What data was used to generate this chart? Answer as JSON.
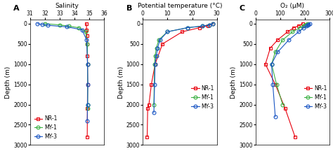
{
  "panels": {
    "A": {
      "title": "Salinity",
      "label": "A",
      "xlim": [
        31,
        36
      ],
      "xticks": [
        31,
        32,
        33,
        34,
        35,
        36
      ],
      "series": {
        "NR-1": {
          "x": [
            34.8,
            34.82,
            34.84,
            34.86,
            34.87,
            34.88,
            34.88,
            34.87,
            34.86
          ],
          "y": [
            0,
            150,
            300,
            500,
            800,
            1000,
            1500,
            2100,
            2800
          ]
        },
        "MY-1": {
          "x": [
            32.0,
            33.0,
            33.6,
            34.3,
            34.75,
            34.87,
            34.88,
            34.89,
            34.9
          ],
          "y": [
            0,
            30,
            60,
            100,
            200,
            500,
            1000,
            2000,
            2100
          ]
        },
        "MY-3": {
          "x": [
            31.5,
            31.8,
            32.2,
            33.5,
            34.5,
            34.82,
            34.88,
            34.9,
            34.88,
            34.86
          ],
          "y": [
            0,
            20,
            40,
            80,
            150,
            400,
            1000,
            1500,
            2000,
            2400
          ]
        }
      },
      "legend_loc": "lower left",
      "show_ylabel": true
    },
    "B": {
      "title": "Potential temperature (°C)",
      "label": "B",
      "xlim": [
        0,
        30
      ],
      "xticks": [
        0,
        10,
        20,
        30
      ],
      "series": {
        "NR-1": {
          "x": [
            28.5,
            26.5,
            23.0,
            16.0,
            8.0,
            5.0,
            3.5,
            2.5,
            2.0,
            1.8
          ],
          "y": [
            0,
            50,
            100,
            200,
            500,
            1000,
            1500,
            2000,
            2100,
            2800
          ]
        },
        "MY-1": {
          "x": [
            28.5,
            27.0,
            24.0,
            18.0,
            10.0,
            6.5,
            5.5,
            5.0,
            4.8,
            4.5
          ],
          "y": [
            0,
            30,
            60,
            100,
            200,
            400,
            600,
            800,
            1000,
            2000
          ]
        },
        "MY-3": {
          "x": [
            28.5,
            27.0,
            24.0,
            18.0,
            10.0,
            7.0,
            6.0,
            5.5,
            5.0,
            4.8,
            4.5
          ],
          "y": [
            0,
            30,
            60,
            100,
            200,
            400,
            600,
            800,
            1000,
            1500,
            2200
          ]
        }
      },
      "legend_loc": "center right",
      "show_ylabel": true
    },
    "C": {
      "title": "O₂ (μM)",
      "label": "C",
      "xlim": [
        0,
        300
      ],
      "xticks": [
        0,
        100,
        200,
        300
      ],
      "series": {
        "NR-1": {
          "x": [
            190,
            175,
            155,
            130,
            90,
            60,
            40,
            80,
            120,
            160
          ],
          "y": [
            0,
            50,
            100,
            200,
            400,
            600,
            1000,
            1500,
            2100,
            2800
          ]
        },
        "MY-1": {
          "x": [
            210,
            205,
            200,
            195,
            180,
            150,
            110,
            80,
            65,
            85,
            110
          ],
          "y": [
            0,
            20,
            40,
            60,
            100,
            200,
            400,
            700,
            1000,
            1500,
            2000
          ]
        },
        "MY-3": {
          "x": [
            220,
            215,
            210,
            205,
            195,
            175,
            135,
            90,
            65,
            70,
            80
          ],
          "y": [
            0,
            20,
            40,
            60,
            100,
            200,
            400,
            700,
            1000,
            1500,
            2300
          ]
        }
      },
      "legend_loc": "center right",
      "show_ylabel": true
    }
  },
  "ylim": [
    3000,
    -100
  ],
  "yticks": [
    0,
    500,
    1000,
    1500,
    2000,
    2500,
    3000
  ],
  "ylabel": "Depth (m)",
  "colors": {
    "NR-1": "#e8000d",
    "MY-1": "#3cb044",
    "MY-3": "#1a56c4"
  },
  "markers": {
    "NR-1": "s",
    "MY-1": "o",
    "MY-3": "o"
  },
  "figsize": [
    4.74,
    2.16
  ],
  "dpi": 100
}
